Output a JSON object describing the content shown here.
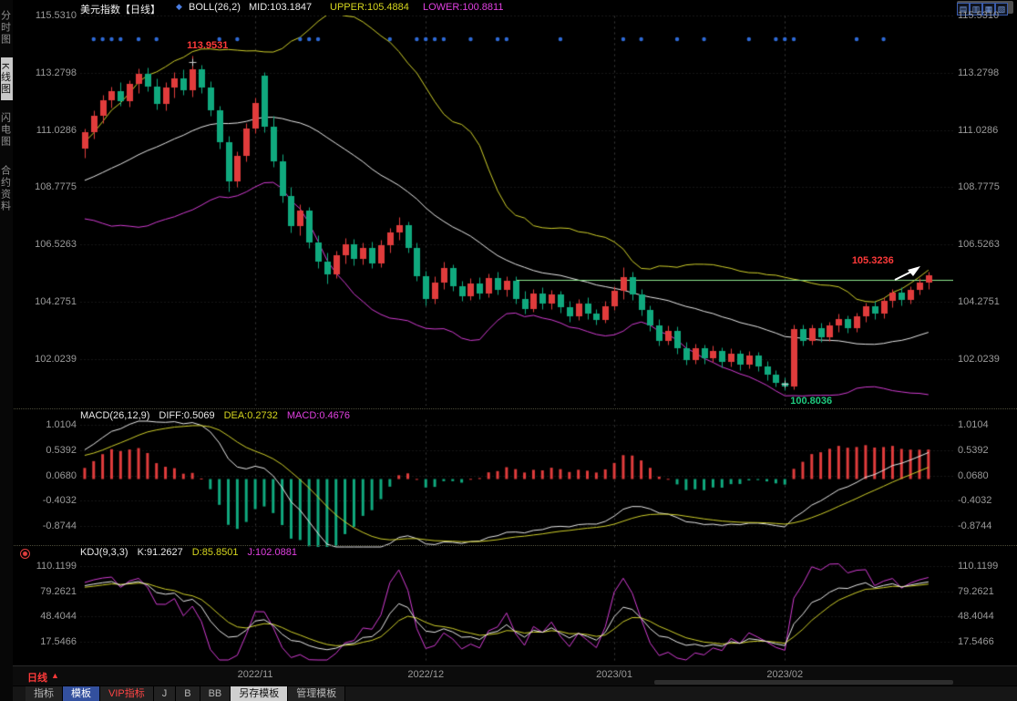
{
  "header": {
    "title": "美元指数【日线】",
    "indicator_icon": "◆",
    "boll_label": "BOLL(26,2)",
    "mid_label": "MID:103.1847",
    "upper_label": "UPPER:105.4884",
    "lower_label": "LOWER:100.8811",
    "theme_button_label": "全部主题",
    "theme_button_caret": "▼",
    "layout_icons": [
      "▤",
      "▥",
      "▦",
      "▧"
    ]
  },
  "sidebar": {
    "items": [
      {
        "name": "time-share-chart",
        "label": "分时图",
        "active": false
      },
      {
        "name": "kline-chart",
        "label": "K线图",
        "active": true
      },
      {
        "name": "flash-chart",
        "label": "闪电图",
        "active": false
      },
      {
        "name": "contract-info",
        "label": "合约资料",
        "active": false
      }
    ]
  },
  "bottom_bar": {
    "period_label": "日线",
    "period_caret": "▲",
    "tabs": [
      {
        "name": "indicators",
        "label": "指标",
        "style": "plain"
      },
      {
        "name": "templates",
        "label": "模板",
        "style": "active"
      },
      {
        "name": "vip-indicators",
        "label": "VIP指标",
        "style": "red"
      },
      {
        "name": "j",
        "label": "J",
        "style": "plain"
      },
      {
        "name": "b",
        "label": "B",
        "style": "plain"
      },
      {
        "name": "bb",
        "label": "BB",
        "style": "plain"
      },
      {
        "name": "save-template",
        "label": "另存模板",
        "style": "light"
      },
      {
        "name": "manage-template",
        "label": "管理模板",
        "style": "plain"
      }
    ]
  },
  "colors": {
    "up": "#e03c3c",
    "down": "#10a97e",
    "boll_upper": "#cfcf2a",
    "boll_mid": "#e8e8e8",
    "boll_lower": "#d23cd2",
    "grid": "#2e2e2e",
    "month_grid": "#3a3a3a",
    "axis_text": "#9a9a9a",
    "signal_dot": "#2f6bd8",
    "h_line": "#8ee98e",
    "kdj_k": "#e8e8e8",
    "kdj_d": "#cfcf2a",
    "kdj_j": "#d23cd2",
    "annotation_red": "#ff3a3a",
    "annotation_green": "#1ec97e"
  },
  "chart_data": {
    "type": "candlestick",
    "title": "美元指数 日线",
    "x_axis": {
      "labels": [
        {
          "text": "2022/11",
          "index": 19
        },
        {
          "text": "2022/12",
          "index": 38
        },
        {
          "text": "2023/01",
          "index": 59
        },
        {
          "text": "2023/02",
          "index": 78
        }
      ]
    },
    "warmup_closes": [
      107.8,
      107.95,
      108.1,
      108.0,
      108.2,
      108.35,
      108.5,
      108.45,
      108.6,
      108.75,
      108.9,
      108.85,
      109.0,
      109.15,
      109.3,
      109.25,
      109.4,
      109.5,
      109.45,
      109.6,
      109.7,
      109.8,
      109.75,
      109.9,
      110.1
    ],
    "panels": [
      {
        "name": "price",
        "y_ticks": [
          "115.5310",
          "113.2798",
          "111.0286",
          "108.7775",
          "106.5263",
          "104.2751",
          "102.0239"
        ],
        "boll_params": "26,2",
        "boll_latest": {
          "mid": 103.1847,
          "upper": 105.4884,
          "lower": 100.8811
        },
        "h_line": {
          "price": 105.15,
          "from_index": 48
        },
        "annotations": [
          {
            "type": "peak",
            "text": "113.9531",
            "price": 113.9531,
            "index": 12,
            "color": "#ff3a3a"
          },
          {
            "type": "trough",
            "text": "100.8036",
            "price": 100.8036,
            "index": 78,
            "color": "#1ec97e"
          },
          {
            "type": "latest",
            "text": "105.3236",
            "price": 105.3236,
            "index": 94,
            "color": "#ff3a3a"
          }
        ],
        "signal_dot_indices": [
          1,
          2,
          3,
          4,
          6,
          8,
          15,
          17,
          24,
          25,
          26,
          34,
          37,
          38,
          39,
          40,
          43,
          46,
          47,
          53,
          60,
          62,
          66,
          69,
          74,
          77,
          78,
          79,
          86,
          89
        ],
        "candles": [
          [
            110.3,
            111.1,
            109.95,
            110.95
          ],
          [
            110.95,
            111.8,
            110.7,
            111.6
          ],
          [
            111.6,
            112.4,
            111.3,
            112.2
          ],
          [
            112.2,
            112.75,
            111.9,
            112.55
          ],
          [
            112.55,
            112.9,
            112.0,
            112.15
          ],
          [
            112.15,
            113.0,
            111.95,
            112.85
          ],
          [
            112.85,
            113.45,
            112.5,
            113.25
          ],
          [
            113.25,
            113.5,
            112.55,
            112.75
          ],
          [
            112.75,
            113.05,
            111.85,
            112.05
          ],
          [
            112.05,
            112.9,
            111.8,
            112.7
          ],
          [
            112.7,
            113.3,
            112.3,
            113.05
          ],
          [
            113.05,
            113.4,
            112.4,
            112.6
          ],
          [
            112.6,
            113.95,
            112.35,
            113.4
          ],
          [
            113.4,
            113.6,
            112.5,
            112.7
          ],
          [
            112.7,
            112.95,
            111.6,
            111.8
          ],
          [
            111.8,
            112.0,
            110.3,
            110.55
          ],
          [
            110.55,
            110.8,
            108.6,
            109.0
          ],
          [
            109.0,
            110.2,
            108.8,
            110.0
          ],
          [
            110.0,
            111.3,
            109.8,
            111.1
          ],
          [
            111.1,
            112.3,
            110.9,
            112.1
          ],
          [
            113.15,
            113.3,
            110.95,
            111.15
          ],
          [
            111.15,
            111.6,
            109.6,
            109.8
          ],
          [
            109.8,
            110.1,
            108.2,
            108.45
          ],
          [
            108.45,
            108.8,
            107.0,
            107.25
          ],
          [
            107.25,
            108.1,
            106.9,
            107.85
          ],
          [
            107.85,
            108.0,
            106.4,
            106.6
          ],
          [
            106.6,
            106.9,
            105.6,
            105.85
          ],
          [
            105.85,
            106.2,
            105.0,
            105.35
          ],
          [
            105.35,
            106.3,
            105.2,
            106.1
          ],
          [
            106.1,
            106.8,
            105.8,
            106.55
          ],
          [
            106.55,
            106.75,
            105.7,
            105.95
          ],
          [
            105.95,
            106.6,
            105.75,
            106.4
          ],
          [
            106.4,
            106.65,
            105.6,
            105.8
          ],
          [
            105.8,
            106.7,
            105.65,
            106.5
          ],
          [
            106.5,
            107.2,
            106.2,
            107.0
          ],
          [
            107.0,
            107.6,
            106.7,
            107.3
          ],
          [
            107.3,
            107.45,
            106.2,
            106.4
          ],
          [
            106.4,
            106.6,
            105.1,
            105.3
          ],
          [
            105.3,
            105.5,
            104.15,
            104.4
          ],
          [
            104.4,
            105.3,
            104.2,
            105.05
          ],
          [
            105.05,
            105.85,
            104.8,
            105.6
          ],
          [
            105.6,
            105.75,
            104.7,
            104.9
          ],
          [
            104.9,
            105.1,
            104.3,
            104.5
          ],
          [
            104.5,
            105.2,
            104.35,
            105.0
          ],
          [
            105.0,
            105.25,
            104.4,
            104.6
          ],
          [
            104.6,
            105.4,
            104.45,
            105.2
          ],
          [
            105.2,
            105.45,
            104.55,
            104.75
          ],
          [
            104.75,
            105.3,
            104.5,
            105.1
          ],
          [
            105.1,
            105.3,
            104.2,
            104.4
          ],
          [
            104.4,
            104.7,
            103.8,
            104.0
          ],
          [
            104.0,
            104.8,
            103.9,
            104.6
          ],
          [
            104.6,
            104.85,
            104.0,
            104.2
          ],
          [
            104.2,
            104.75,
            104.0,
            104.55
          ],
          [
            104.55,
            104.7,
            103.85,
            104.05
          ],
          [
            104.05,
            104.3,
            103.5,
            103.7
          ],
          [
            103.7,
            104.4,
            103.55,
            104.2
          ],
          [
            104.2,
            104.45,
            103.6,
            103.8
          ],
          [
            103.8,
            104.0,
            103.4,
            103.55
          ],
          [
            103.55,
            104.3,
            103.45,
            104.1
          ],
          [
            104.1,
            104.9,
            103.95,
            104.7
          ],
          [
            104.7,
            105.63,
            104.4,
            105.25
          ],
          [
            105.25,
            105.45,
            104.35,
            104.55
          ],
          [
            104.55,
            104.8,
            103.75,
            103.95
          ],
          [
            103.95,
            104.15,
            103.15,
            103.35
          ],
          [
            103.35,
            103.6,
            102.55,
            102.75
          ],
          [
            102.75,
            103.35,
            102.6,
            103.15
          ],
          [
            103.15,
            103.3,
            102.25,
            102.45
          ],
          [
            102.45,
            102.7,
            101.8,
            102.0
          ],
          [
            102.0,
            102.65,
            101.85,
            102.45
          ],
          [
            102.45,
            102.6,
            101.85,
            102.05
          ],
          [
            102.05,
            102.55,
            101.9,
            102.35
          ],
          [
            102.35,
            102.5,
            101.7,
            101.9
          ],
          [
            101.9,
            102.45,
            101.75,
            102.25
          ],
          [
            102.25,
            102.4,
            101.6,
            101.8
          ],
          [
            101.8,
            102.35,
            101.65,
            102.15
          ],
          [
            102.15,
            102.3,
            101.55,
            101.75
          ],
          [
            101.75,
            101.95,
            101.2,
            101.4
          ],
          [
            101.4,
            101.6,
            100.95,
            101.1
          ],
          [
            101.1,
            101.3,
            100.8,
            100.95
          ],
          [
            100.95,
            103.4,
            100.85,
            103.2
          ],
          [
            103.2,
            103.4,
            102.55,
            102.75
          ],
          [
            102.75,
            103.4,
            102.6,
            103.25
          ],
          [
            103.25,
            103.45,
            102.7,
            102.9
          ],
          [
            102.9,
            103.5,
            102.75,
            103.35
          ],
          [
            103.35,
            103.8,
            103.1,
            103.6
          ],
          [
            103.6,
            103.75,
            103.05,
            103.25
          ],
          [
            103.25,
            103.85,
            103.1,
            103.7
          ],
          [
            103.7,
            104.25,
            103.5,
            104.1
          ],
          [
            104.1,
            104.3,
            103.6,
            103.8
          ],
          [
            103.8,
            104.45,
            103.65,
            104.3
          ],
          [
            104.3,
            104.8,
            104.05,
            104.65
          ],
          [
            104.65,
            104.85,
            104.15,
            104.35
          ],
          [
            104.35,
            104.9,
            104.2,
            104.75
          ],
          [
            104.75,
            105.2,
            104.55,
            105.05
          ],
          [
            105.05,
            105.45,
            104.8,
            105.32
          ]
        ]
      },
      {
        "name": "macd",
        "title": "MACD(26,12,9)",
        "diff_label": "DIFF:0.5069",
        "dea_label": "DEA:0.2732",
        "macd_label": "MACD:0.4676",
        "latest": {
          "diff": 0.5069,
          "dea": 0.2732,
          "macd": 0.4676
        },
        "y_ticks": [
          "1.0104",
          "0.5392",
          "0.0680",
          "-0.4032",
          "-0.8744"
        ]
      },
      {
        "name": "kdj",
        "title": "KDJ(9,3,3)",
        "k_label": "K:91.2627",
        "d_label": "D:85.8501",
        "j_label": "J:102.0881",
        "latest": {
          "k": 91.2627,
          "d": 85.8501,
          "j": 102.0881
        },
        "y_ticks": [
          "110.1199",
          "79.2621",
          "48.4044",
          "17.5466"
        ]
      }
    ]
  }
}
